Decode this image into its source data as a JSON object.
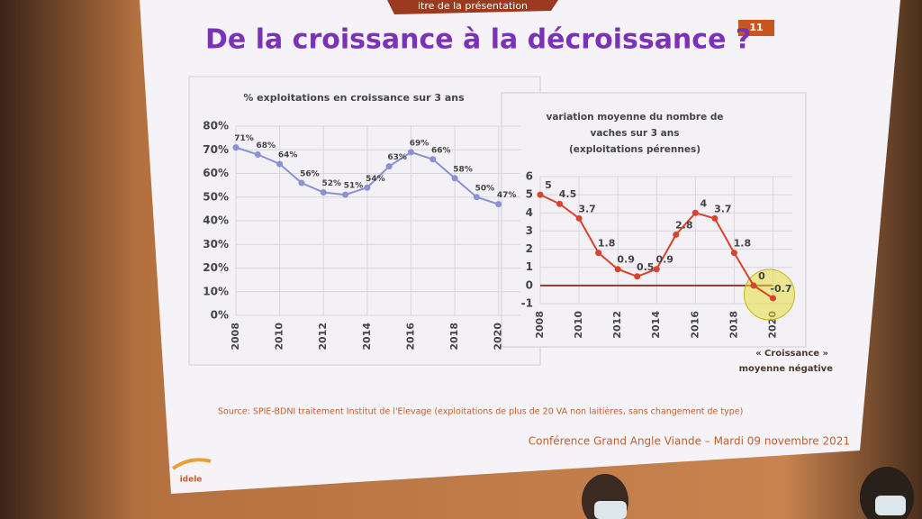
{
  "header": "itre de la présentation",
  "page_number": "11",
  "title": "De la croissance à la décroissance ?",
  "chart_data": [
    {
      "type": "line",
      "title": "% exploitations en croissance sur 3 ans",
      "x": [
        2008,
        2009,
        2010,
        2011,
        2012,
        2013,
        2014,
        2015,
        2016,
        2017,
        2018,
        2019,
        2020
      ],
      "series": [
        {
          "name": "% exploitations en croissance",
          "color": "#8a91d4",
          "values": [
            71,
            68,
            64,
            56,
            52,
            51,
            54,
            63,
            69,
            66,
            58,
            50,
            47
          ],
          "value_labels": [
            "71%",
            "68%",
            "64%",
            "56%",
            "52%",
            "51%",
            "54%",
            "63%",
            "69%",
            "66%",
            "58%",
            "50%",
            "47%"
          ]
        }
      ],
      "xlim": [
        2008,
        2021
      ],
      "xticks": [
        2008,
        2010,
        2012,
        2014,
        2016,
        2018,
        2020
      ],
      "ylim": [
        0,
        80
      ],
      "yticks": [
        {
          "value": 0,
          "label": "0%"
        },
        {
          "value": 10,
          "label": "10%"
        },
        {
          "value": 20,
          "label": "20%"
        },
        {
          "value": 30,
          "label": "30%"
        },
        {
          "value": 40,
          "label": "40%"
        },
        {
          "value": 50,
          "label": "50%"
        },
        {
          "value": 60,
          "label": "60%"
        },
        {
          "value": 70,
          "label": "70%"
        },
        {
          "value": 80,
          "label": "80%"
        }
      ],
      "grid": true
    },
    {
      "type": "line",
      "title": [
        "variation moyenne du nombre de",
        "vaches sur 3 ans",
        "(exploitations pérennes)"
      ],
      "x": [
        2008,
        2009,
        2010,
        2011,
        2012,
        2013,
        2014,
        2015,
        2016,
        2017,
        2018,
        2019,
        2020
      ],
      "series": [
        {
          "name": "variation moyenne",
          "color": "#d8432c",
          "values": [
            5,
            4.5,
            3.7,
            1.8,
            0.9,
            0.5,
            0.9,
            2.8,
            4,
            3.7,
            1.8,
            0,
            -0.7
          ]
        }
      ],
      "xlim": [
        2008,
        2021
      ],
      "xticks": [
        2008,
        2010,
        2012,
        2014,
        2016,
        2018,
        2020
      ],
      "ylim": [
        -1,
        6
      ],
      "yticks": [
        -1,
        0,
        1,
        2,
        3,
        4,
        5,
        6
      ],
      "grid": true
    }
  ],
  "annotation": [
    "« Croissance »",
    "moyenne négative"
  ],
  "source": "Source: SPIE-BDNI traitement Institut de l'Elevage (exploitations de plus de 20 VA non laitières, sans changement de type)",
  "footer": "Conférence Grand Angle Viande – Mardi 09 novembre 2021",
  "logo": "idele"
}
